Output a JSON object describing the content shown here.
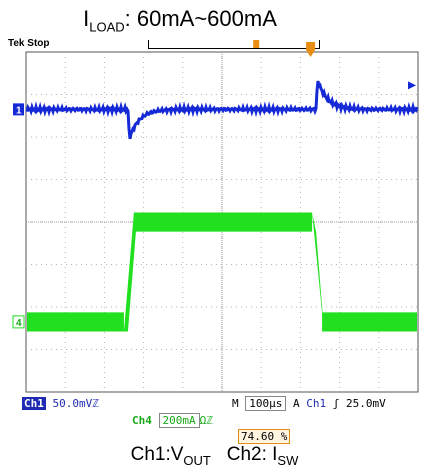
{
  "title": {
    "text": "I",
    "sub": "LOAD",
    "rest": ": 60mA~600mA"
  },
  "scope": {
    "status": "Tek Stop",
    "ch1_marker": "1",
    "ch4_marker": "4",
    "colors": {
      "ch1": "#1529d6",
      "ch4": "#20e020",
      "grid": "#b5b5b5",
      "trigger": "#e78d12"
    }
  },
  "readouts": {
    "ch1_label": "Ch1",
    "ch1_scale": "50.0mV",
    "ch1_coupling": "ℤ",
    "ch4_label": "Ch4",
    "ch4_scale": "200mA",
    "ch4_coupling": "Ωℤ",
    "timebase_prefix": "M",
    "timebase": "100μs",
    "trigger_prefix": "A",
    "trigger_source": "Ch1",
    "trigger_slope": "ʃ",
    "trigger_level": "25.0mV",
    "trigger_position": "74.60 %"
  },
  "caption": {
    "a": "Ch1:V",
    "a_sub": "OUT",
    "b": "Ch2: I",
    "b_sub": "SW"
  },
  "chart_data": {
    "type": "line",
    "xlim_divisions": [
      0,
      10
    ],
    "ylim_divisions": [
      -4,
      4
    ],
    "series": [
      {
        "name": "Ch1",
        "baseline_div": 2.65,
        "events": [
          {
            "x_div": 2.6,
            "kind": "undershoot",
            "amplitude_div": -0.8
          },
          {
            "x_div": 7.4,
            "kind": "overshoot",
            "amplitude_div": 0.8
          }
        ]
      },
      {
        "name": "Ch4",
        "low_div": -2.35,
        "high_div": 0.0,
        "ripple_div": 0.45,
        "edges_div": [
          2.6,
          7.4
        ]
      }
    ]
  }
}
